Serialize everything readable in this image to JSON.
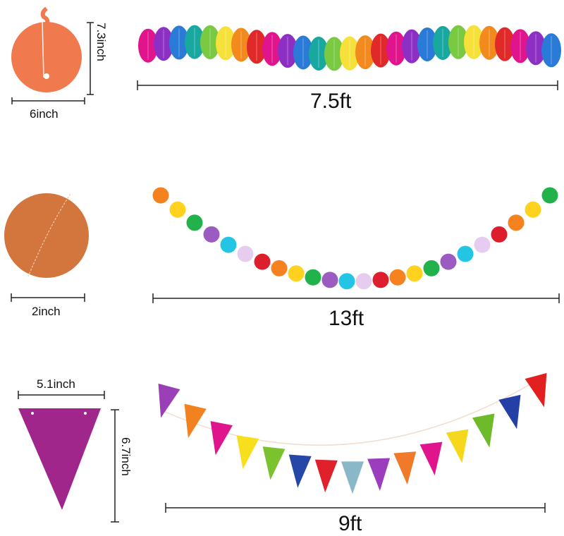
{
  "sections": [
    {
      "name": "honeycomb-balls",
      "sample_width": "6inch",
      "sample_height": "7.3inch",
      "length": "7.5ft",
      "sample_color": "#f07a4e"
    },
    {
      "name": "circle-dots",
      "sample_width": "2inch",
      "length": "13ft",
      "sample_color": "#d2763e"
    },
    {
      "name": "pennant-flags",
      "sample_width": "5.1inch",
      "sample_height": "6.7inch",
      "length": "9ft",
      "sample_color": "#a0268c"
    }
  ],
  "palette": [
    "#f25c05",
    "#f7c600",
    "#1fa64a",
    "#9b59b6",
    "#1ec3e0",
    "#e1c6f0",
    "#dc1e2d",
    "#ff8c1a",
    "#ffd700",
    "#22aa55",
    "#a155c4",
    "#1ab8e0",
    "#d9c9ee",
    "#e0202a"
  ]
}
